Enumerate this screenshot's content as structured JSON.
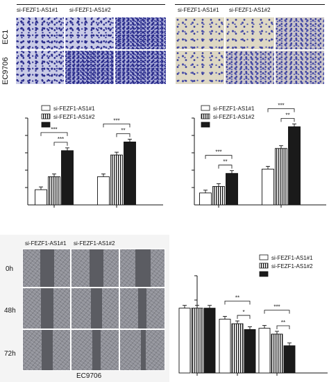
{
  "panels": {
    "migration_ec1": {
      "group_labels": [
        "si-FEZF1-AS1#1",
        "si-FEZF1-AS1#2"
      ]
    },
    "migration_ec9706": {
      "group_labels": [
        "si-FEZF1-AS1#1",
        "si-FEZF1-AS1#2"
      ]
    },
    "row_labels": [
      "EC1",
      "EC9706"
    ],
    "wound": {
      "group_labels": [
        "si-FEZF1-AS1#1",
        "si-FEZF1-AS1#2"
      ],
      "time_labels": [
        "0h",
        "48h",
        "72h"
      ],
      "caption": "EC9706"
    }
  },
  "chart_data": [
    {
      "type": "bar",
      "legend": [
        "si-FEZF1-AS1#1",
        "si-FEZF1-AS1#2",
        ""
      ],
      "legend_placement": "top-left",
      "groups": 2,
      "series": [
        {
          "name": "si-FEZF1-AS1#1",
          "values": [
            0.7,
            1.3
          ]
        },
        {
          "name": "si-FEZF1-AS1#2",
          "values": [
            1.3,
            2.3
          ]
        },
        {
          "values": [
            2.5,
            2.9
          ]
        }
      ],
      "ylim": [
        0,
        4
      ],
      "significance": [
        {
          "group": 0,
          "from": 0,
          "to": 2,
          "label": "***"
        },
        {
          "group": 0,
          "from": 1,
          "to": 2,
          "label": "***"
        },
        {
          "group": 1,
          "from": 0,
          "to": 2,
          "label": "***"
        },
        {
          "group": 1,
          "from": 1,
          "to": 2,
          "label": "**"
        }
      ]
    },
    {
      "type": "bar",
      "legend": [
        "si-FEZF1-AS1#1",
        "si-FEZF1-AS1#2",
        ""
      ],
      "legend_placement": "top-left",
      "groups": 2,
      "series": [
        {
          "name": "si-FEZF1-AS1#1",
          "values": [
            0.55,
            1.65
          ]
        },
        {
          "name": "si-FEZF1-AS1#2",
          "values": [
            0.85,
            2.6
          ]
        },
        {
          "values": [
            1.45,
            3.6
          ]
        }
      ],
      "ylim": [
        0,
        4
      ],
      "significance": [
        {
          "group": 0,
          "from": 0,
          "to": 2,
          "label": "***"
        },
        {
          "group": 0,
          "from": 1,
          "to": 2,
          "label": "**"
        },
        {
          "group": 1,
          "from": 0,
          "to": 2,
          "label": "***"
        },
        {
          "group": 1,
          "from": 1,
          "to": 2,
          "label": "**"
        }
      ]
    },
    {
      "type": "bar",
      "legend": [
        "si-FEZF1-AS1#1",
        "si-FEZF1-AS1#2",
        ""
      ],
      "legend_placement": "top-right",
      "groups": 3,
      "series": [
        {
          "name": "si-FEZF1-AS1#1",
          "values": [
            1.0,
            0.83,
            0.69
          ]
        },
        {
          "name": "si-FEZF1-AS1#2",
          "values": [
            1.0,
            0.76,
            0.6
          ]
        },
        {
          "values": [
            1.0,
            0.67,
            0.42
          ]
        }
      ],
      "ylim": [
        0,
        1.5
      ],
      "significance": [
        {
          "group": 1,
          "from": 0,
          "to": 2,
          "label": "**"
        },
        {
          "group": 1,
          "from": 1,
          "to": 2,
          "label": "*"
        },
        {
          "group": 2,
          "from": 0,
          "to": 2,
          "label": "***"
        },
        {
          "group": 2,
          "from": 1,
          "to": 2,
          "label": "**"
        }
      ]
    }
  ]
}
